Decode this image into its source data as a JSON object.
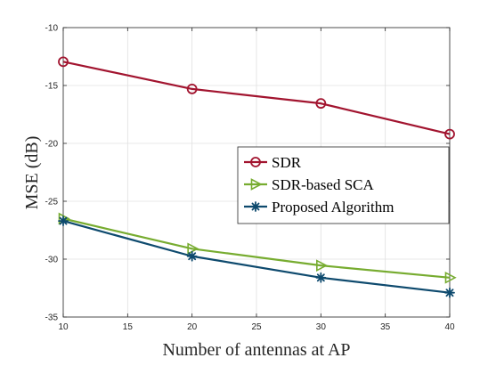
{
  "chart_data": {
    "type": "line",
    "xlabel": "Number of antennas at AP",
    "ylabel": "MSE (dB)",
    "xlim": [
      10,
      40
    ],
    "ylim": [
      -35,
      -10
    ],
    "xticks": [
      10,
      15,
      20,
      25,
      30,
      35,
      40
    ],
    "yticks": [
      -35,
      -30,
      -25,
      -20,
      -15,
      -10
    ],
    "grid": true,
    "legend_position": "right",
    "x": [
      10,
      20,
      30,
      40
    ],
    "series": [
      {
        "name": "SDR",
        "values": [
          -12.95,
          -15.3,
          -16.55,
          -19.2
        ],
        "color": "#a2142f",
        "marker": "circle"
      },
      {
        "name": "SDR-based SCA",
        "values": [
          -26.5,
          -29.1,
          -30.55,
          -31.6
        ],
        "color": "#77ac30",
        "marker": "triangle-right"
      },
      {
        "name": "Proposed Algorithm",
        "values": [
          -26.7,
          -29.75,
          -31.6,
          -32.9
        ],
        "color": "#0e4a6e",
        "marker": "star"
      }
    ]
  }
}
